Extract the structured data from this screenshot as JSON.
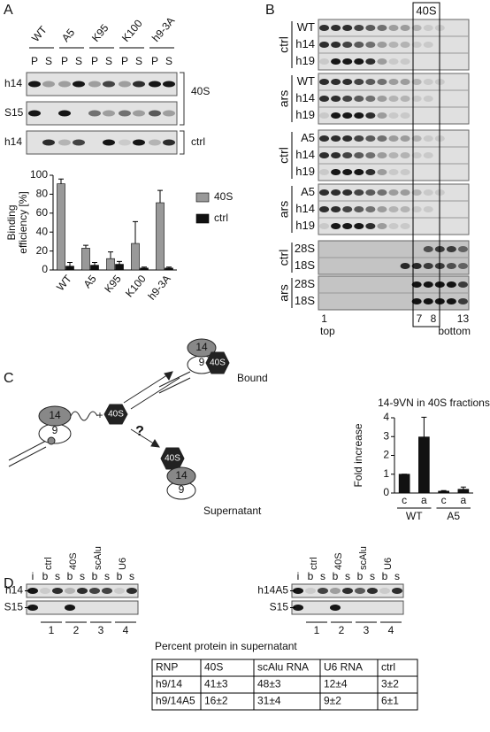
{
  "panels": {
    "a": {
      "label": "A",
      "lanes": [
        "WT",
        "A5",
        "K95",
        "K100",
        "h9-3A"
      ],
      "fraction_labels": [
        "P",
        "S"
      ],
      "rows": [
        "h14",
        "S15",
        "h14"
      ],
      "brackets": [
        "40S",
        "ctrl"
      ]
    },
    "b": {
      "label": "B",
      "box_label": "40S",
      "groups": [
        {
          "condition": "ctrl",
          "rows": [
            "WT",
            "h14",
            "h19"
          ]
        },
        {
          "condition": "ars",
          "rows": [
            "WT",
            "h14",
            "h19"
          ]
        },
        {
          "condition": "ctrl",
          "rows": [
            "A5",
            "h14",
            "h19"
          ]
        },
        {
          "condition": "ars",
          "rows": [
            "A5",
            "h14",
            "h19"
          ]
        },
        {
          "condition": "ctrl",
          "rows": [
            "28S",
            "18S"
          ]
        },
        {
          "condition": "ars",
          "rows": [
            "28S",
            "18S"
          ]
        }
      ],
      "fractions": [
        "1",
        "7",
        "8",
        "13"
      ],
      "ends": [
        "top",
        "bottom"
      ]
    },
    "c": {
      "label": "C",
      "plus": "+",
      "question": "?",
      "particle": "40S",
      "proteins": [
        "14",
        "9"
      ],
      "states": [
        "Bound",
        "Supernatant"
      ]
    },
    "d": {
      "label": "D",
      "gels": [
        {
          "lanes": [
            "ctrl",
            "40S",
            "scAlu",
            "U6"
          ],
          "columns": [
            "i",
            "b",
            "s"
          ],
          "rows": [
            "h14",
            "S15"
          ],
          "numbers": [
            "1",
            "2",
            "3",
            "4"
          ]
        },
        {
          "lanes": [
            "ctrl",
            "40S",
            "scAlu",
            "U6"
          ],
          "columns": [
            "i",
            "b",
            "s"
          ],
          "rows": [
            "h14A5",
            "S15"
          ],
          "numbers": [
            "1",
            "2",
            "3",
            "4"
          ]
        }
      ],
      "table": {
        "title": "Percent protein in supernatant",
        "header": [
          "RNP",
          "40S",
          "scAlu RNA",
          "U6 RNA",
          "ctrl"
        ],
        "rows": [
          [
            "h9/14",
            "41±3",
            "48±3",
            "12±4",
            "3±2"
          ],
          [
            "h9/14A5",
            "16±2",
            "31±4",
            "9±2",
            "6±1"
          ]
        ]
      }
    }
  },
  "chart_data": [
    {
      "type": "bar",
      "y_label": [
        "Binding",
        "efficiency [%]"
      ],
      "categories": [
        "WT",
        "A5",
        "K95",
        "K100",
        "h9-3A"
      ],
      "series": [
        {
          "name": "40S",
          "color": "#999999",
          "values": [
            91,
            23,
            12,
            28,
            71
          ],
          "errors": [
            5,
            3,
            7,
            23,
            13
          ]
        },
        {
          "name": "ctrl",
          "color": "#111111",
          "values": [
            4,
            5,
            6,
            2,
            2
          ],
          "errors": [
            4,
            3,
            3,
            1,
            1
          ]
        }
      ],
      "ylim": [
        0,
        100
      ],
      "yticks": [
        0,
        20,
        40,
        60,
        80,
        100
      ],
      "legend": "right"
    },
    {
      "type": "bar",
      "title": "14-9VN in 40S fractions",
      "y_label": [
        "Fold increase"
      ],
      "categories": [
        "c",
        "a",
        "c",
        "a"
      ],
      "group_labels": [
        "WT",
        "A5"
      ],
      "color": "#111111",
      "values": [
        1,
        2.98,
        0.1,
        0.2
      ],
      "errors": [
        0,
        1.05,
        0.03,
        0.12
      ],
      "ylim": [
        0,
        4
      ],
      "yticks": [
        0,
        1,
        2,
        3,
        4
      ]
    }
  ]
}
